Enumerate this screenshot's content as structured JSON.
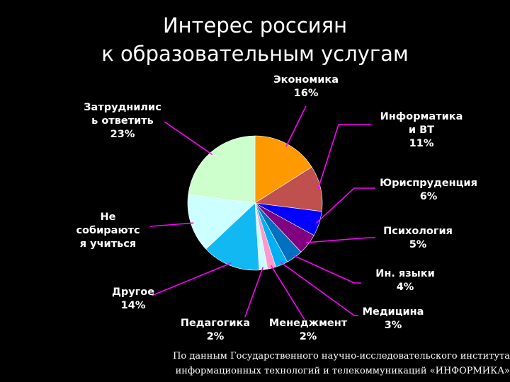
{
  "chart_data": {
    "type": "pie",
    "title": "Интерес россиян\nк образовательным услугам",
    "title_lines": [
      "Интерес россиян",
      "к образовательным услугам"
    ],
    "slices": [
      {
        "label_lines": [
          "Экономика",
          "16%"
        ],
        "value": 16,
        "color": "#ff9900"
      },
      {
        "label_lines": [
          "Информатика",
          "и ВТ",
          "11%"
        ],
        "value": 11,
        "color": "#c0504d"
      },
      {
        "label_lines": [
          "Юриспруденция",
          "6%"
        ],
        "value": 6,
        "color": "#0000ff"
      },
      {
        "label_lines": [
          "Психология",
          "5%"
        ],
        "value": 5,
        "color": "#800080"
      },
      {
        "label_lines": [
          "Ин. языки",
          "4%"
        ],
        "value": 4,
        "color": "#0070c0"
      },
      {
        "label_lines": [
          "Медицина",
          "3%"
        ],
        "value": 3,
        "color": "#00b0f0"
      },
      {
        "label_lines": [
          "Менеджмент",
          "2%"
        ],
        "value": 2,
        "color": "#ff99cc"
      },
      {
        "label_lines": [
          "Педагогика",
          "2%"
        ],
        "value": 2,
        "color": "#ccffff"
      },
      {
        "label_lines": [
          "Другое",
          "14%"
        ],
        "value": 14,
        "color": "#12b8f2"
      },
      {
        "label_lines": [
          "Не",
          "собираютс",
          "я учиться"
        ],
        "value": 14,
        "color": "#ccffff"
      },
      {
        "label_lines": [
          "Затруднилис",
          "ь ответить",
          "23%"
        ],
        "value": 23,
        "color": "#ccffcc"
      }
    ],
    "leader_color": "#ff00ff",
    "legend": "none"
  },
  "source_note_lines": [
    "По данным Государственного научно-исследовательского института",
    "информационных технологий и телекоммуникаций «ИНФОРМИКА»"
  ]
}
